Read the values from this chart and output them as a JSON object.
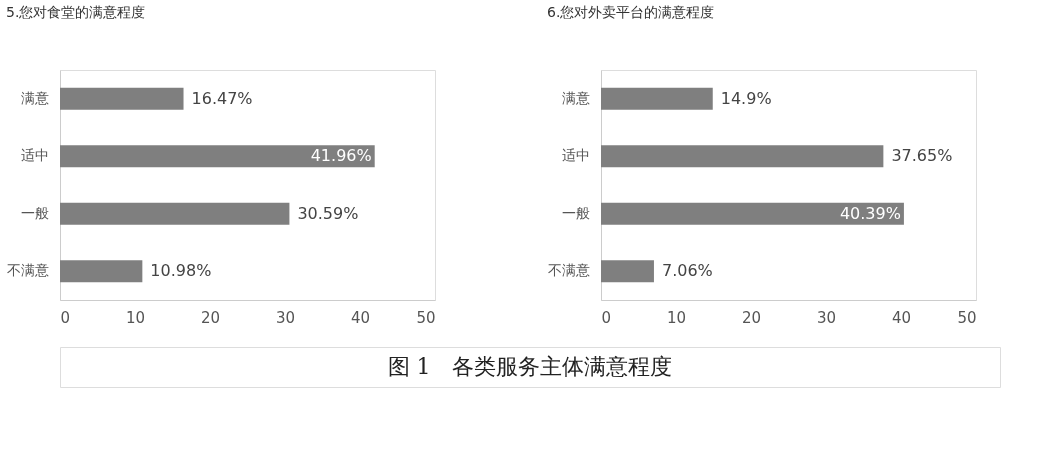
{
  "chart_data": [
    {
      "type": "bar",
      "orientation": "horizontal",
      "title": "5.您对食堂的满意程度",
      "categories": [
        "满意",
        "适中",
        "一般",
        "不满意"
      ],
      "values": [
        16.47,
        41.96,
        30.59,
        10.98
      ],
      "color": "#7f7f7f",
      "value_labels": [
        "16.47%",
        "41.96%",
        "30.59%",
        "10.98%"
      ],
      "xlim": [
        0,
        50
      ],
      "xticks": [
        0,
        10,
        20,
        30,
        40,
        50
      ],
      "grid": false,
      "annotations": [
        "图 1　各类服务主体满意程度"
      ]
    },
    {
      "type": "bar",
      "orientation": "horizontal",
      "title": "6.您对外卖平台的满意程度",
      "categories": [
        "满意",
        "适中",
        "一般",
        "不满意"
      ],
      "values": [
        14.9,
        37.65,
        40.39,
        7.06
      ],
      "color": "#7f7f7f",
      "value_labels": [
        "14.9%",
        "37.65%",
        "40.39%",
        "7.06%"
      ],
      "xlim": [
        0,
        50
      ],
      "xticks": [
        0,
        10,
        20,
        30,
        40,
        50
      ],
      "grid": false
    }
  ]
}
